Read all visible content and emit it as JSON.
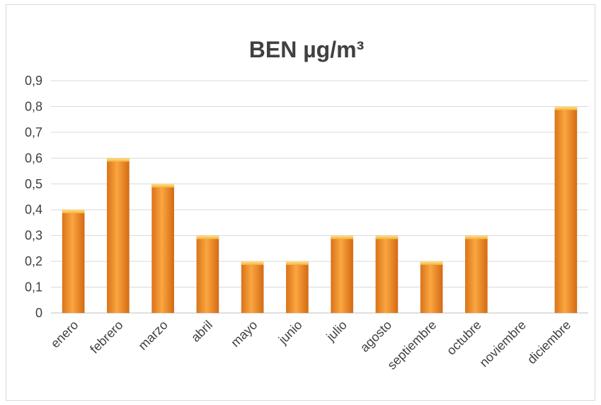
{
  "chart_data": {
    "type": "bar",
    "title": "BEN µg/m³",
    "xlabel": "",
    "ylabel": "",
    "categories": [
      "enero",
      "febrero",
      "marzo",
      "abril",
      "mayo",
      "junio",
      "julio",
      "agosto",
      "septiembre",
      "octubre",
      "noviembre",
      "diciembre"
    ],
    "values": [
      0.4,
      0.6,
      0.5,
      0.3,
      0.2,
      0.2,
      0.3,
      0.3,
      0.2,
      0.3,
      null,
      0.8
    ],
    "ylim": [
      0,
      0.9
    ],
    "yticks": [
      "0",
      "0,1",
      "0,2",
      "0,3",
      "0,4",
      "0,5",
      "0,6",
      "0,7",
      "0,8",
      "0,9"
    ],
    "grid": true,
    "legend": "none",
    "colors": {
      "bar_light": "#f9a33a",
      "bar_dark": "#d9731a",
      "bar_top": "#fcd36a",
      "text": "#404040",
      "grid": "#d9d9d9"
    }
  }
}
